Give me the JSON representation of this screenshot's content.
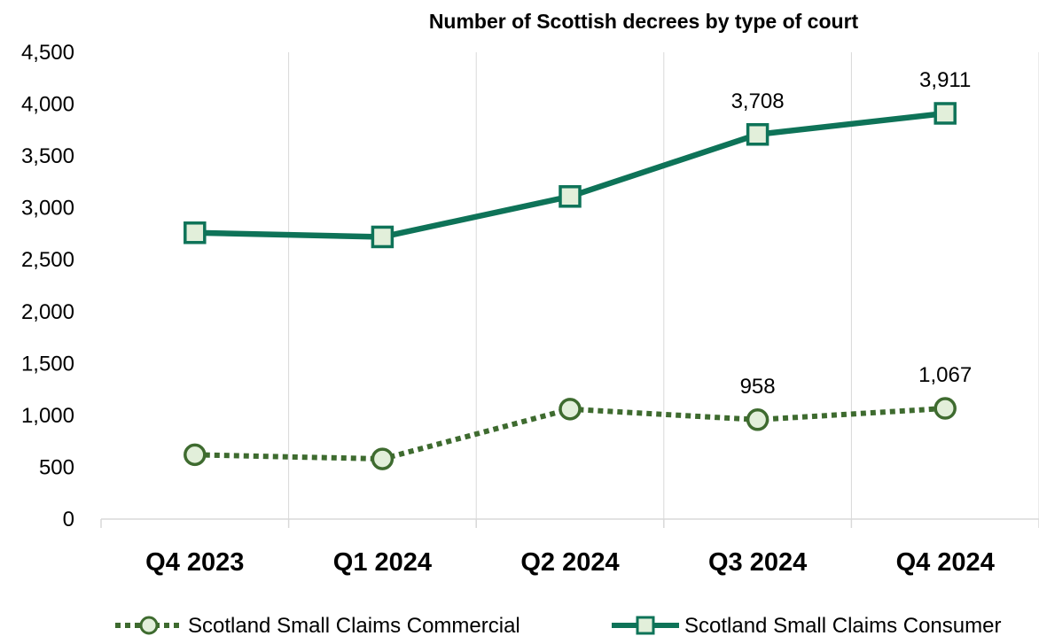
{
  "chart_data": {
    "type": "line",
    "title": "Number of Scottish decrees by type of court",
    "categories": [
      "Q4 2023",
      "Q1 2024",
      "Q2 2024",
      "Q3 2024",
      "Q4 2024"
    ],
    "ylim": [
      0,
      4500
    ],
    "yticks": [
      0,
      500,
      1000,
      1500,
      2000,
      2500,
      3000,
      3500,
      4000,
      4500
    ],
    "ytick_labels": [
      "0",
      "500",
      "1,000",
      "1,500",
      "2,000",
      "2,500",
      "3,000",
      "3,500",
      "4,000",
      "4,500"
    ],
    "grid": "vertical",
    "legend_position": "bottom",
    "series": [
      {
        "name": "Scotland Small Claims Commercial",
        "values": [
          620,
          580,
          1060,
          958,
          1067
        ],
        "data_labels": [
          null,
          null,
          null,
          "958",
          "1,067"
        ],
        "style": "dotted",
        "marker": "circle",
        "color": "#3e6b2f",
        "marker_fill": "#e2efda"
      },
      {
        "name": "Scotland Small Claims Consumer",
        "values": [
          2760,
          2720,
          3110,
          3708,
          3911
        ],
        "data_labels": [
          null,
          null,
          null,
          "3,708",
          "3,911"
        ],
        "style": "solid",
        "marker": "square",
        "color": "#0e7358",
        "marker_fill": "#e2efda"
      }
    ]
  }
}
